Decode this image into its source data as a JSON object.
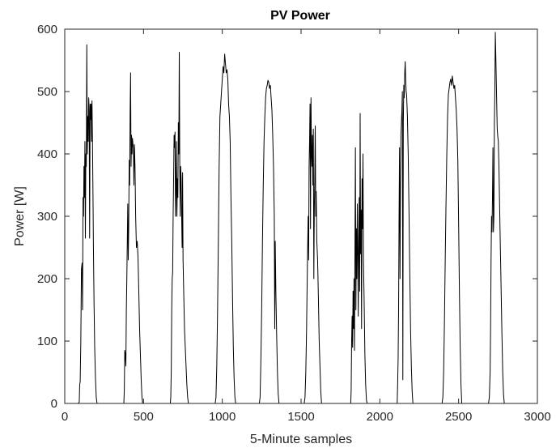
{
  "chart_data": {
    "type": "line",
    "title": "PV Power",
    "xlabel": "5-Minute samples",
    "ylabel": "Power [W]",
    "xlim": [
      0,
      3000
    ],
    "ylim": [
      0,
      600
    ],
    "xticks": [
      "0",
      "500",
      "1000",
      "1500",
      "2000",
      "2500",
      "3000"
    ],
    "yticks": [
      "0",
      "100",
      "200",
      "300",
      "400",
      "500",
      "600"
    ],
    "grid": false,
    "line_color": "#000000",
    "series": [
      {
        "points": [
          [
            0,
            0
          ],
          [
            85,
            0
          ],
          [
            92,
            2
          ],
          [
            95,
            30
          ],
          [
            98,
            35
          ],
          [
            102,
            100
          ],
          [
            106,
            215
          ],
          [
            110,
            225
          ],
          [
            113,
            150
          ],
          [
            116,
            330
          ],
          [
            119,
            300
          ],
          [
            122,
            380
          ],
          [
            125,
            330
          ],
          [
            128,
            420
          ],
          [
            131,
            265
          ],
          [
            134,
            400
          ],
          [
            137,
            380
          ],
          [
            140,
            575
          ],
          [
            143,
            400
          ],
          [
            146,
            460
          ],
          [
            149,
            420
          ],
          [
            152,
            490
          ],
          [
            155,
            470
          ],
          [
            158,
            265
          ],
          [
            161,
            480
          ],
          [
            164,
            455
          ],
          [
            167,
            480
          ],
          [
            170,
            420
          ],
          [
            173,
            485
          ],
          [
            176,
            420
          ],
          [
            179,
            340
          ],
          [
            182,
            250
          ],
          [
            186,
            160
          ],
          [
            190,
            90
          ],
          [
            195,
            40
          ],
          [
            200,
            10
          ],
          [
            205,
            0
          ],
          [
            375,
            0
          ],
          [
            378,
            20
          ],
          [
            381,
            85
          ],
          [
            384,
            80
          ],
          [
            388,
            60
          ],
          [
            391,
            150
          ],
          [
            394,
            200
          ],
          [
            397,
            260
          ],
          [
            400,
            320
          ],
          [
            403,
            230
          ],
          [
            406,
            280
          ],
          [
            409,
            390
          ],
          [
            412,
            350
          ],
          [
            415,
            465
          ],
          [
            418,
            530
          ],
          [
            421,
            380
          ],
          [
            424,
            430
          ],
          [
            427,
            400
          ],
          [
            430,
            425
          ],
          [
            433,
            415
          ],
          [
            436,
            410
          ],
          [
            439,
            350
          ],
          [
            442,
            415
          ],
          [
            446,
            380
          ],
          [
            450,
            300
          ],
          [
            455,
            250
          ],
          [
            460,
            260
          ],
          [
            465,
            235
          ],
          [
            470,
            180
          ],
          [
            475,
            120
          ],
          [
            480,
            80
          ],
          [
            485,
            40
          ],
          [
            490,
            10
          ],
          [
            495,
            0
          ],
          [
            670,
            0
          ],
          [
            673,
            10
          ],
          [
            676,
            50
          ],
          [
            679,
            150
          ],
          [
            682,
            200
          ],
          [
            685,
            210
          ],
          [
            688,
            300
          ],
          [
            691,
            360
          ],
          [
            694,
            430
          ],
          [
            697,
            410
          ],
          [
            700,
            435
          ],
          [
            703,
            300
          ],
          [
            706,
            340
          ],
          [
            709,
            420
          ],
          [
            712,
            300
          ],
          [
            715,
            360
          ],
          [
            718,
            330
          ],
          [
            721,
            450
          ],
          [
            724,
            400
          ],
          [
            727,
            563
          ],
          [
            730,
            380
          ],
          [
            733,
            300
          ],
          [
            736,
            380
          ],
          [
            739,
            360
          ],
          [
            742,
            300
          ],
          [
            745,
            250
          ],
          [
            748,
            370
          ],
          [
            751,
            230
          ],
          [
            755,
            180
          ],
          [
            760,
            120
          ],
          [
            765,
            90
          ],
          [
            770,
            60
          ],
          [
            775,
            30
          ],
          [
            780,
            10
          ],
          [
            785,
            0
          ],
          [
            955,
            0
          ],
          [
            960,
            10
          ],
          [
            965,
            60
          ],
          [
            970,
            150
          ],
          [
            975,
            260
          ],
          [
            980,
            380
          ],
          [
            985,
            460
          ],
          [
            990,
            480
          ],
          [
            995,
            500
          ],
          [
            1000,
            520
          ],
          [
            1005,
            540
          ],
          [
            1010,
            530
          ],
          [
            1015,
            560
          ],
          [
            1020,
            545
          ],
          [
            1025,
            530
          ],
          [
            1030,
            535
          ],
          [
            1035,
            520
          ],
          [
            1040,
            480
          ],
          [
            1045,
            460
          ],
          [
            1050,
            420
          ],
          [
            1055,
            330
          ],
          [
            1060,
            260
          ],
          [
            1065,
            170
          ],
          [
            1070,
            90
          ],
          [
            1075,
            40
          ],
          [
            1080,
            10
          ],
          [
            1085,
            0
          ],
          [
            1235,
            0
          ],
          [
            1240,
            10
          ],
          [
            1245,
            70
          ],
          [
            1250,
            150
          ],
          [
            1255,
            260
          ],
          [
            1260,
            350
          ],
          [
            1265,
            420
          ],
          [
            1270,
            460
          ],
          [
            1275,
            490
          ],
          [
            1280,
            505
          ],
          [
            1285,
            510
          ],
          [
            1290,
            518
          ],
          [
            1295,
            515
          ],
          [
            1300,
            505
          ],
          [
            1305,
            510
          ],
          [
            1310,
            490
          ],
          [
            1315,
            470
          ],
          [
            1320,
            430
          ],
          [
            1325,
            380
          ],
          [
            1330,
            300
          ],
          [
            1333,
            120
          ],
          [
            1336,
            260
          ],
          [
            1340,
            180
          ],
          [
            1345,
            110
          ],
          [
            1350,
            50
          ],
          [
            1355,
            15
          ],
          [
            1360,
            0
          ],
          [
            1520,
            0
          ],
          [
            1525,
            10
          ],
          [
            1530,
            50
          ],
          [
            1535,
            120
          ],
          [
            1540,
            220
          ],
          [
            1545,
            300
          ],
          [
            1548,
            230
          ],
          [
            1551,
            380
          ],
          [
            1554,
            420
          ],
          [
            1557,
            480
          ],
          [
            1560,
            280
          ],
          [
            1563,
            490
          ],
          [
            1566,
            400
          ],
          [
            1569,
            380
          ],
          [
            1572,
            430
          ],
          [
            1575,
            350
          ],
          [
            1578,
            440
          ],
          [
            1581,
            200
          ],
          [
            1584,
            310
          ],
          [
            1587,
            360
          ],
          [
            1590,
            445
          ],
          [
            1593,
            300
          ],
          [
            1596,
            340
          ],
          [
            1600,
            260
          ],
          [
            1605,
            230
          ],
          [
            1610,
            170
          ],
          [
            1615,
            100
          ],
          [
            1620,
            60
          ],
          [
            1625,
            20
          ],
          [
            1630,
            0
          ],
          [
            1815,
            0
          ],
          [
            1818,
            20
          ],
          [
            1821,
            100
          ],
          [
            1824,
            140
          ],
          [
            1827,
            90
          ],
          [
            1830,
            180
          ],
          [
            1833,
            120
          ],
          [
            1836,
            200
          ],
          [
            1839,
            85
          ],
          [
            1842,
            250
          ],
          [
            1845,
            410
          ],
          [
            1848,
            150
          ],
          [
            1851,
            280
          ],
          [
            1854,
            200
          ],
          [
            1857,
            320
          ],
          [
            1860,
            250
          ],
          [
            1863,
            140
          ],
          [
            1866,
            260
          ],
          [
            1869,
            330
          ],
          [
            1872,
            180
          ],
          [
            1875,
            465
          ],
          [
            1878,
            240
          ],
          [
            1881,
            310
          ],
          [
            1884,
            120
          ],
          [
            1887,
            360
          ],
          [
            1890,
            280
          ],
          [
            1893,
            400
          ],
          [
            1896,
            230
          ],
          [
            1900,
            170
          ],
          [
            1905,
            80
          ],
          [
            1910,
            30
          ],
          [
            1915,
            5
          ],
          [
            1920,
            0
          ],
          [
            2110,
            0
          ],
          [
            2113,
            30
          ],
          [
            2116,
            70
          ],
          [
            2119,
            150
          ],
          [
            2122,
            300
          ],
          [
            2125,
            410
          ],
          [
            2128,
            200
          ],
          [
            2131,
            350
          ],
          [
            2134,
            430
          ],
          [
            2137,
            450
          ],
          [
            2140,
            470
          ],
          [
            2143,
            500
          ],
          [
            2146,
            38
          ],
          [
            2149,
            450
          ],
          [
            2152,
            510
          ],
          [
            2155,
            490
          ],
          [
            2158,
            530
          ],
          [
            2161,
            548
          ],
          [
            2164,
            520
          ],
          [
            2167,
            500
          ],
          [
            2170,
            495
          ],
          [
            2175,
            460
          ],
          [
            2180,
            400
          ],
          [
            2185,
            310
          ],
          [
            2190,
            210
          ],
          [
            2195,
            120
          ],
          [
            2200,
            60
          ],
          [
            2205,
            20
          ],
          [
            2210,
            0
          ],
          [
            2395,
            0
          ],
          [
            2400,
            10
          ],
          [
            2405,
            50
          ],
          [
            2410,
            130
          ],
          [
            2415,
            230
          ],
          [
            2420,
            320
          ],
          [
            2425,
            400
          ],
          [
            2430,
            460
          ],
          [
            2435,
            495
          ],
          [
            2440,
            505
          ],
          [
            2445,
            515
          ],
          [
            2450,
            520
          ],
          [
            2455,
            510
          ],
          [
            2460,
            525
          ],
          [
            2465,
            515
          ],
          [
            2470,
            505
          ],
          [
            2475,
            510
          ],
          [
            2480,
            490
          ],
          [
            2485,
            470
          ],
          [
            2490,
            440
          ],
          [
            2495,
            390
          ],
          [
            2500,
            290
          ],
          [
            2505,
            180
          ],
          [
            2510,
            90
          ],
          [
            2515,
            30
          ],
          [
            2520,
            0
          ],
          [
            2690,
            0
          ],
          [
            2695,
            10
          ],
          [
            2700,
            50
          ],
          [
            2703,
            120
          ],
          [
            2706,
            230
          ],
          [
            2709,
            300
          ],
          [
            2712,
            275
          ],
          [
            2715,
            330
          ],
          [
            2718,
            410
          ],
          [
            2721,
            275
          ],
          [
            2724,
            300
          ],
          [
            2727,
            450
          ],
          [
            2730,
            500
          ],
          [
            2733,
            595
          ],
          [
            2736,
            560
          ],
          [
            2739,
            520
          ],
          [
            2742,
            480
          ],
          [
            2745,
            440
          ],
          [
            2748,
            430
          ],
          [
            2752,
            420
          ],
          [
            2756,
            380
          ],
          [
            2760,
            320
          ],
          [
            2765,
            250
          ],
          [
            2770,
            180
          ],
          [
            2775,
            110
          ],
          [
            2780,
            50
          ],
          [
            2785,
            15
          ],
          [
            2790,
            0
          ],
          [
            2895,
            0
          ]
        ]
      }
    ]
  }
}
